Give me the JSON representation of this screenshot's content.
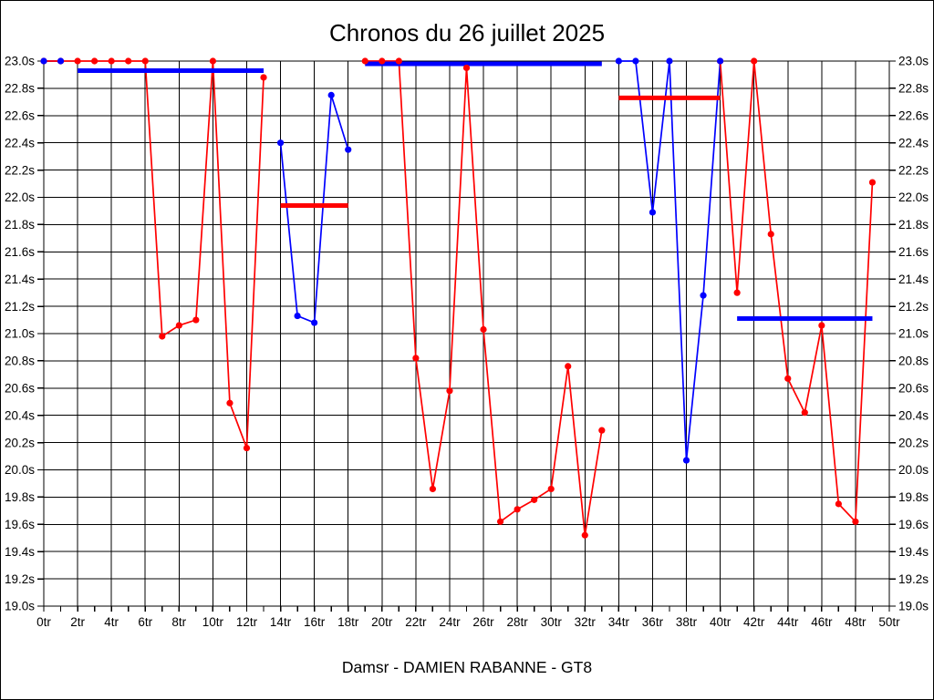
{
  "title": "Chronos du 26 juillet 2025",
  "subtitle": "Damsr - DAMIEN RABANNE - GT8",
  "chart_data": {
    "type": "line",
    "title": "Chronos du 26 juillet 2025",
    "footer": "Damsr - DAMIEN RABANNE - GT8",
    "xlabel": "",
    "ylabel": "",
    "x_unit": "tr",
    "y_unit": "s",
    "xlim": [
      0,
      50
    ],
    "ylim": [
      19.0,
      23.0
    ],
    "x_tick_step": 2,
    "x_minor_tick_step": 1,
    "y_tick_step": 0.2,
    "grid": true,
    "legend_position": "none",
    "x_tick_labels": [
      "0tr",
      "2tr",
      "4tr",
      "6tr",
      "8tr",
      "10tr",
      "12tr",
      "14tr",
      "16tr",
      "18tr",
      "20tr",
      "22tr",
      "24tr",
      "26tr",
      "28tr",
      "30tr",
      "32tr",
      "34tr",
      "36tr",
      "38tr",
      "40tr",
      "42tr",
      "44tr",
      "46tr",
      "48tr",
      "50tr"
    ],
    "y_tick_labels": [
      "23.0s",
      "22.8s",
      "22.6s",
      "22.4s",
      "22.2s",
      "22.0s",
      "21.8s",
      "21.6s",
      "21.4s",
      "21.2s",
      "21.0s",
      "20.8s",
      "20.6s",
      "20.4s",
      "20.2s",
      "20.0s",
      "19.8s",
      "19.6s",
      "19.4s",
      "19.2s",
      "19.0s"
    ],
    "series": [
      {
        "name": "red-driver-laps",
        "color": "#ff0000",
        "stints": [
          [
            [
              0,
              23.0
            ],
            [
              1,
              23.0
            ],
            [
              2,
              23.0
            ],
            [
              3,
              23.0
            ],
            [
              4,
              23.0
            ],
            [
              5,
              23.0
            ],
            [
              6,
              23.0
            ],
            [
              7,
              20.98
            ],
            [
              8,
              21.06
            ],
            [
              9,
              21.1
            ],
            [
              10,
              23.0
            ],
            [
              11,
              20.49
            ],
            [
              12,
              20.16
            ],
            [
              13,
              22.88
            ]
          ],
          [
            [
              19,
              23.0
            ],
            [
              20,
              23.0
            ],
            [
              21,
              23.0
            ],
            [
              22,
              20.82
            ],
            [
              23,
              19.86
            ],
            [
              24,
              20.58
            ],
            [
              25,
              22.95
            ],
            [
              26,
              21.03
            ],
            [
              27,
              19.62
            ],
            [
              28,
              19.71
            ],
            [
              29,
              19.78
            ],
            [
              30,
              19.86
            ],
            [
              31,
              20.76
            ],
            [
              32,
              19.52
            ],
            [
              33,
              20.29
            ]
          ],
          [
            [
              40,
              23.0
            ],
            [
              41,
              21.3
            ],
            [
              42,
              23.0
            ],
            [
              43,
              21.73
            ],
            [
              44,
              20.67
            ],
            [
              45,
              20.42
            ],
            [
              46,
              21.06
            ],
            [
              47,
              19.75
            ],
            [
              48,
              19.62
            ],
            [
              49,
              22.11
            ]
          ]
        ]
      },
      {
        "name": "blue-driver-laps",
        "color": "#0000ff",
        "stints": [
          [
            [
              0,
              23.0
            ],
            [
              1,
              23.0
            ]
          ],
          [
            [
              14,
              22.4
            ],
            [
              15,
              21.13
            ],
            [
              16,
              21.08
            ],
            [
              17,
              22.75
            ],
            [
              18,
              22.35
            ]
          ],
          [
            [
              34,
              23.0
            ],
            [
              35,
              23.0
            ],
            [
              36,
              21.89
            ],
            [
              37,
              23.0
            ],
            [
              38,
              20.07
            ],
            [
              39,
              21.28
            ],
            [
              40,
              23.0
            ]
          ]
        ]
      }
    ],
    "stint_average_bars": [
      {
        "color": "#0000ff",
        "from": 2,
        "to": 13,
        "value": 22.93
      },
      {
        "color": "#0000ff",
        "from": 19,
        "to": 33,
        "value": 22.98
      },
      {
        "color": "#0000ff",
        "from": 41,
        "to": 49,
        "value": 21.11
      },
      {
        "color": "#ff0000",
        "from": 14,
        "to": 18,
        "value": 21.94
      },
      {
        "color": "#ff0000",
        "from": 34,
        "to": 40,
        "value": 22.73
      }
    ]
  }
}
